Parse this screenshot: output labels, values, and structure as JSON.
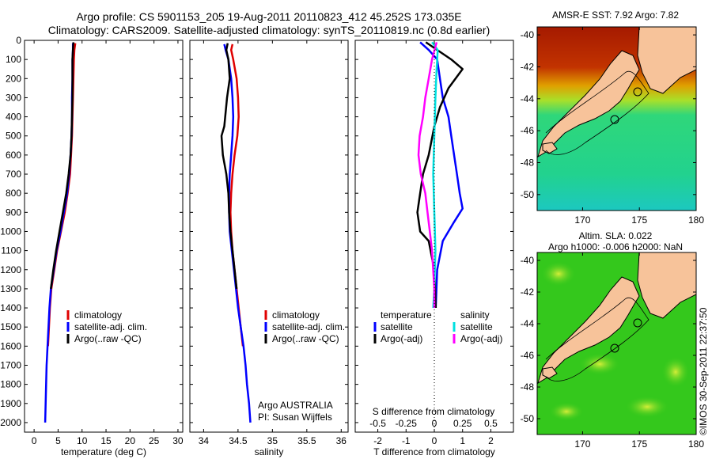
{
  "title": {
    "line1": "Argo profile: CS 5901153_205 19-Aug-2011 20110823_412 45.252S 173.035E",
    "line2": "Climatology: CARS2009. Satellite-adjusted climatology: synTS_20110819.nc (0.8d earlier)"
  },
  "credit": "©IMOS 30-Sep-2011 22:37:50",
  "colors": {
    "climatology": "#e00000",
    "satellite": "#0000ff",
    "argo": "#000000",
    "salinity_satellite": "#00e0e0",
    "salinity_argo": "#ff00ff",
    "land": "#f7c39a"
  },
  "chart_data": [
    {
      "type": "line",
      "xlabel": "temperature (deg C)",
      "ylabel": "",
      "xlim": [
        -2,
        31
      ],
      "ylim": [
        0,
        2050
      ],
      "y_reversed": true,
      "xticks": [
        0,
        5,
        10,
        15,
        20,
        25,
        30
      ],
      "yticks": [
        0,
        100,
        200,
        300,
        400,
        500,
        600,
        700,
        800,
        900,
        1000,
        1100,
        1200,
        1300,
        1400,
        1500,
        1600,
        1700,
        1800,
        1900,
        2000
      ],
      "legend": [
        "climatology",
        "satellite-adj. clim.",
        "Argo(..raw -QC)"
      ],
      "legend_position": "lower-center",
      "series": [
        {
          "name": "climatology",
          "color": "#e00000",
          "points": [
            [
              8.6,
              15
            ],
            [
              8.4,
              50
            ],
            [
              8.3,
              100
            ],
            [
              8.2,
              200
            ],
            [
              8.1,
              300
            ],
            [
              8.0,
              400
            ],
            [
              7.9,
              500
            ],
            [
              7.7,
              600
            ],
            [
              7.5,
              700
            ],
            [
              7.0,
              800
            ],
            [
              6.4,
              900
            ],
            [
              5.6,
              1000
            ],
            [
              4.8,
              1100
            ],
            [
              4.2,
              1200
            ],
            [
              3.6,
              1300
            ],
            [
              3.3,
              1400
            ],
            [
              3.1,
              1500
            ],
            [
              2.9,
              1600
            ]
          ]
        },
        {
          "name": "satellite-adj. clim.",
          "color": "#0000ff",
          "points": [
            [
              8.1,
              15
            ],
            [
              8.1,
              50
            ],
            [
              8.0,
              100
            ],
            [
              8.0,
              200
            ],
            [
              7.9,
              300
            ],
            [
              7.9,
              400
            ],
            [
              7.8,
              500
            ],
            [
              7.6,
              600
            ],
            [
              7.3,
              700
            ],
            [
              6.9,
              800
            ],
            [
              6.2,
              900
            ],
            [
              5.5,
              1000
            ],
            [
              4.7,
              1100
            ],
            [
              4.1,
              1200
            ],
            [
              3.5,
              1300
            ],
            [
              3.2,
              1400
            ],
            [
              3.0,
              1500
            ],
            [
              2.8,
              1600
            ],
            [
              2.6,
              1700
            ],
            [
              2.5,
              1800
            ],
            [
              2.4,
              1900
            ],
            [
              2.3,
              2000
            ]
          ]
        },
        {
          "name": "Argo(..raw -QC)",
          "color": "#000000",
          "points": [
            [
              8.2,
              10
            ],
            [
              8.1,
              50
            ],
            [
              8.0,
              100
            ],
            [
              8.0,
              200
            ],
            [
              8.0,
              300
            ],
            [
              7.9,
              400
            ],
            [
              7.8,
              500
            ],
            [
              7.6,
              600
            ],
            [
              7.2,
              700
            ],
            [
              6.7,
              800
            ],
            [
              6.0,
              900
            ],
            [
              5.3,
              1000
            ],
            [
              4.6,
              1100
            ],
            [
              4.0,
              1200
            ],
            [
              3.5,
              1300
            ]
          ]
        }
      ]
    },
    {
      "type": "line",
      "xlabel": "salinity",
      "ylabel": "",
      "xlim": [
        33.8,
        36.1
      ],
      "ylim": [
        0,
        2050
      ],
      "y_reversed": true,
      "xticks": [
        34,
        34.5,
        35,
        35.5,
        36
      ],
      "legend": [
        "climatology",
        "satellite-adj. clim.",
        "Argo(..raw -QC)"
      ],
      "legend_position": "lower-center",
      "annotation": [
        "Argo AUSTRALIA",
        "PI: Susan Wijffels"
      ],
      "series": [
        {
          "name": "climatology",
          "color": "#e00000",
          "points": [
            [
              34.42,
              20
            ],
            [
              34.4,
              50
            ],
            [
              34.43,
              100
            ],
            [
              34.48,
              200
            ],
            [
              34.5,
              300
            ],
            [
              34.51,
              400
            ],
            [
              34.49,
              500
            ],
            [
              34.45,
              600
            ],
            [
              34.42,
              700
            ],
            [
              34.4,
              800
            ],
            [
              34.39,
              900
            ],
            [
              34.4,
              1000
            ],
            [
              34.42,
              1100
            ],
            [
              34.45,
              1200
            ],
            [
              34.48,
              1300
            ],
            [
              34.51,
              1400
            ],
            [
              34.54,
              1500
            ],
            [
              34.57,
              1600
            ]
          ]
        },
        {
          "name": "satellite-adj. clim.",
          "color": "#0000ff",
          "points": [
            [
              34.3,
              20
            ],
            [
              34.32,
              50
            ],
            [
              34.36,
              100
            ],
            [
              34.4,
              200
            ],
            [
              34.42,
              300
            ],
            [
              34.43,
              400
            ],
            [
              34.42,
              500
            ],
            [
              34.4,
              600
            ],
            [
              34.38,
              700
            ],
            [
              34.37,
              800
            ],
            [
              34.37,
              900
            ],
            [
              34.38,
              1000
            ],
            [
              34.41,
              1100
            ],
            [
              34.44,
              1200
            ],
            [
              34.47,
              1300
            ],
            [
              34.5,
              1400
            ],
            [
              34.54,
              1500
            ],
            [
              34.58,
              1600
            ],
            [
              34.61,
              1700
            ],
            [
              34.63,
              1800
            ],
            [
              34.66,
              1900
            ],
            [
              34.68,
              2000
            ]
          ]
        },
        {
          "name": "Argo(..raw -QC)",
          "color": "#000000",
          "points": [
            [
              34.35,
              15
            ],
            [
              34.33,
              50
            ],
            [
              34.36,
              100
            ],
            [
              34.38,
              200
            ],
            [
              34.34,
              300
            ],
            [
              34.3,
              450
            ],
            [
              34.26,
              500
            ],
            [
              34.28,
              600
            ],
            [
              34.33,
              700
            ],
            [
              34.36,
              800
            ],
            [
              34.37,
              900
            ],
            [
              34.39,
              1000
            ],
            [
              34.42,
              1100
            ],
            [
              34.45,
              1200
            ],
            [
              34.48,
              1300
            ]
          ]
        }
      ]
    },
    {
      "type": "line",
      "xlabel": "T difference from climatology",
      "xlabel_top": "S difference from climatology",
      "xlim": [
        -2.8,
        2.8
      ],
      "ylim": [
        0,
        2050
      ],
      "y_reversed": true,
      "xticks": [
        -2,
        -1,
        0,
        1,
        2
      ],
      "xticks_top": [
        "-0.5",
        "-0.25",
        "0",
        "0.25",
        "0.5"
      ],
      "legend_left": {
        "title": "temperature",
        "items": [
          "satellite",
          "Argo(-adj)"
        ]
      },
      "legend_right": {
        "title": "salinity",
        "items": [
          "satellite",
          "Argo(-adj)"
        ]
      },
      "series": [
        {
          "name": "temperature satellite",
          "color": "#0000ff",
          "points": [
            [
              -0.5,
              10
            ],
            [
              -0.2,
              50
            ],
            [
              0.1,
              100
            ],
            [
              0.2,
              200
            ],
            [
              0.3,
              300
            ],
            [
              0.5,
              400
            ],
            [
              0.6,
              500
            ],
            [
              0.7,
              600
            ],
            [
              0.8,
              700
            ],
            [
              0.9,
              800
            ],
            [
              1.0,
              880
            ],
            [
              0.7,
              950
            ],
            [
              0.3,
              1050
            ],
            [
              0.1,
              1200
            ],
            [
              0.05,
              1400
            ]
          ]
        },
        {
          "name": "temperature Argo(-adj)",
          "color": "#000000",
          "points": [
            [
              -0.3,
              10
            ],
            [
              0.6,
              100
            ],
            [
              1.0,
              150
            ],
            [
              0.5,
              250
            ],
            [
              0.2,
              350
            ],
            [
              0.0,
              450
            ],
            [
              -0.2,
              600
            ],
            [
              -0.4,
              700
            ],
            [
              -0.5,
              800
            ],
            [
              -0.6,
              900
            ],
            [
              -0.5,
              1000
            ],
            [
              -0.2,
              1050
            ],
            [
              0.0,
              1200
            ],
            [
              0.05,
              1400
            ]
          ]
        },
        {
          "name": "salinity satellite",
          "color": "#00e0e0",
          "points": [
            [
              -0.02,
              10
            ],
            [
              0.03,
              50
            ],
            [
              0.02,
              150
            ],
            [
              0.01,
              300
            ],
            [
              0.0,
              500
            ],
            [
              -0.01,
              700
            ],
            [
              0.0,
              900
            ],
            [
              0.01,
              1100
            ],
            [
              0.0,
              1300
            ],
            [
              -0.01,
              1400
            ]
          ]
        },
        {
          "name": "salinity Argo(-adj)",
          "color": "#ff00ff",
          "points": [
            [
              0.02,
              10
            ],
            [
              -0.02,
              100
            ],
            [
              -0.05,
              200
            ],
            [
              -0.08,
              300
            ],
            [
              -0.1,
              400
            ],
            [
              -0.13,
              500
            ],
            [
              -0.14,
              600
            ],
            [
              -0.12,
              700
            ],
            [
              -0.08,
              800
            ],
            [
              -0.06,
              900
            ],
            [
              -0.04,
              1000
            ],
            [
              -0.02,
              1100
            ],
            [
              0.0,
              1300
            ],
            [
              0.0,
              1400
            ]
          ]
        }
      ]
    },
    {
      "type": "heatmap",
      "title": "AMSR-E SST: 7.92 Argo: 7.82",
      "xlim": [
        166,
        180
      ],
      "ylim": [
        -51,
        -39.5
      ],
      "xticks": [
        170,
        175,
        180
      ],
      "yticks": [
        -40,
        -42,
        -44,
        -46,
        -48,
        -50
      ]
    },
    {
      "type": "heatmap",
      "title_line1": "Altim. SLA: 0.022",
      "title_line2": "Argo h1000: -0.006 h2000: NaN",
      "xlim": [
        166,
        180
      ],
      "ylim": [
        -51,
        -39.5
      ],
      "xticks": [
        170,
        175,
        180
      ],
      "yticks": [
        -40,
        -42,
        -44,
        -46,
        -48,
        -50
      ]
    }
  ]
}
